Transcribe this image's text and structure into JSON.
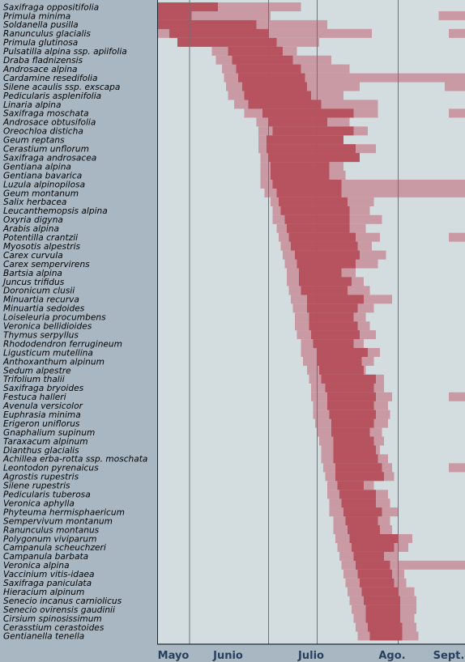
{
  "chart_data": {
    "type": "bar",
    "orientation": "horizontal-range",
    "title": "",
    "xlabel": "",
    "ylabel": "",
    "x_axis_unit": "day-of-year",
    "xlim": [
      121,
      273
    ],
    "month_labels": [
      {
        "label": "Mayo",
        "x": 129
      },
      {
        "label": "Junio",
        "x": 156
      },
      {
        "label": "Julio",
        "x": 197
      },
      {
        "label": "Ago.",
        "x": 237
      },
      {
        "label": "Sept.",
        "x": 265
      }
    ],
    "gridlines": [
      137,
      176,
      200,
      240
    ],
    "colors": {
      "plot_bg": "#d3dcdf",
      "frame_bg": "#a9b7c2",
      "peak": "#b6535f",
      "range": "#c99aa4",
      "grid": "#6b7378",
      "month_text": "#26415f"
    },
    "series": [
      {
        "name": "",
        "key": "peak"
      },
      {
        "name": "",
        "key": "range"
      }
    ],
    "species": [
      {
        "name": "Saxifraga oppositifolia",
        "peak": [
          121,
          151
        ],
        "range": [
          [
            121,
            192
          ]
        ]
      },
      {
        "name": "Primula minima",
        "peak": [
          121,
          138
        ],
        "range": [
          [
            121,
            177
          ],
          [
            260,
            273
          ]
        ]
      },
      {
        "name": "Soldanella pusilla",
        "peak": [
          121,
          170
        ],
        "range": [
          [
            121,
            205
          ]
        ]
      },
      {
        "name": "Ranunculus glacialis",
        "peak": [
          127,
          176
        ],
        "range": [
          [
            121,
            227
          ],
          [
            265,
            273
          ]
        ]
      },
      {
        "name": "Primula glutinosa",
        "peak": [
          131,
          180
        ],
        "range": [
          [
            131,
            201
          ]
        ]
      },
      {
        "name": "Pulsatilla alpina ssp. apiifolia",
        "peak": [
          156,
          183
        ],
        "range": [
          [
            148,
            190
          ]
        ]
      },
      {
        "name": "Draba fladnizensis",
        "peak": [
          158,
          188
        ],
        "range": [
          [
            150,
            207
          ]
        ]
      },
      {
        "name": "Androsace alpina",
        "peak": [
          160,
          192
        ],
        "range": [
          [
            153,
            216
          ]
        ]
      },
      {
        "name": "Cardamine resedifolia",
        "peak": [
          161,
          194
        ],
        "range": [
          [
            154,
            273
          ]
        ]
      },
      {
        "name": "Silene acaulis ssp. exscapa",
        "peak": [
          163,
          195
        ],
        "range": [
          [
            155,
            221
          ],
          [
            263,
            273
          ]
        ]
      },
      {
        "name": "Pedicularis asplenifolia",
        "peak": [
          164,
          197
        ],
        "range": [
          [
            156,
            213
          ]
        ]
      },
      {
        "name": "Linaria alpina",
        "peak": [
          166,
          202
        ],
        "range": [
          [
            159,
            230
          ]
        ]
      },
      {
        "name": "Saxifraga moschata",
        "peak": [
          173,
          218
        ],
        "range": [
          [
            164,
            230
          ],
          [
            265,
            273
          ]
        ]
      },
      {
        "name": "Androsace obtusifolia",
        "peak": [
          176,
          205
        ],
        "range": [
          [
            170,
            216
          ]
        ]
      },
      {
        "name": "Oreochloa disticha",
        "peak": [
          178,
          218
        ],
        "range": [
          [
            171,
            225
          ]
        ]
      },
      {
        "name": "Geum reptans",
        "peak": [
          175,
          213
        ],
        "range": [
          [
            171,
            198
          ]
        ]
      },
      {
        "name": "Cerastium unflorum",
        "peak": [
          175,
          219
        ],
        "range": [
          [
            171,
            229
          ]
        ]
      },
      {
        "name": "Saxifraga androsacea",
        "peak": [
          176,
          221
        ],
        "range": [
          [
            172,
            221
          ]
        ]
      },
      {
        "name": "Gentiana alpina",
        "peak": [
          177,
          206
        ],
        "range": [
          [
            172,
            213
          ]
        ]
      },
      {
        "name": "Gentiana bavarica",
        "peak": [
          177,
          206
        ],
        "range": [
          [
            172,
            214
          ]
        ]
      },
      {
        "name": "Luzula alpinopilosa",
        "peak": [
          178,
          212
        ],
        "range": [
          [
            172,
            273
          ]
        ]
      },
      {
        "name": "Geum montanum",
        "peak": [
          180,
          212
        ],
        "range": [
          [
            174,
            273
          ]
        ]
      },
      {
        "name": "Salix herbacea",
        "peak": [
          181,
          215
        ],
        "range": [
          [
            177,
            228
          ]
        ]
      },
      {
        "name": "Leucanthemopsis alpina",
        "peak": [
          182,
          216
        ],
        "range": [
          [
            178,
            226
          ]
        ]
      },
      {
        "name": "Oxyria digyna",
        "peak": [
          184,
          216
        ],
        "range": [
          [
            178,
            232
          ]
        ]
      },
      {
        "name": "Arabis alpina",
        "peak": [
          185,
          216
        ],
        "range": [
          [
            180,
            224
          ]
        ]
      },
      {
        "name": "Potentilla crantzii",
        "peak": [
          186,
          219
        ],
        "range": [
          [
            181,
            231
          ],
          [
            265,
            273
          ]
        ]
      },
      {
        "name": "Myosotis alpestris",
        "peak": [
          187,
          220
        ],
        "range": [
          [
            182,
            227
          ]
        ]
      },
      {
        "name": "Carex curvula",
        "peak": [
          189,
          221
        ],
        "range": [
          [
            183,
            234
          ]
        ]
      },
      {
        "name": "Carex sempervirens",
        "peak": [
          190,
          219
        ],
        "range": [
          [
            184,
            230
          ]
        ]
      },
      {
        "name": "Bartsia alpina",
        "peak": [
          191,
          212
        ],
        "range": [
          [
            185,
            219
          ]
        ]
      },
      {
        "name": "Juncus trifidus",
        "peak": [
          191,
          217
        ],
        "range": [
          [
            185,
            223
          ]
        ]
      },
      {
        "name": "Doronicum clusii",
        "peak": [
          192,
          215
        ],
        "range": [
          [
            186,
            226
          ]
        ]
      },
      {
        "name": "Minuartia recurva",
        "peak": [
          195,
          223
        ],
        "range": [
          [
            187,
            237
          ]
        ]
      },
      {
        "name": "Minuartia sedoides",
        "peak": [
          195,
          220
        ],
        "range": [
          [
            188,
            228
          ]
        ]
      },
      {
        "name": "Loiseleuria procumbens",
        "peak": [
          196,
          218
        ],
        "range": [
          [
            189,
            224
          ]
        ]
      },
      {
        "name": "Veronica bellidioides",
        "peak": [
          196,
          220
        ],
        "range": [
          [
            189,
            226
          ]
        ]
      },
      {
        "name": "Thymus serpyllus",
        "peak": [
          197,
          221
        ],
        "range": [
          [
            190,
            229
          ]
        ]
      },
      {
        "name": "Rhododendron ferrugineum",
        "peak": [
          198,
          218
        ],
        "range": [
          [
            192,
            223
          ]
        ]
      },
      {
        "name": "Ligusticum mutellina",
        "peak": [
          200,
          225
        ],
        "range": [
          [
            192,
            231
          ]
        ]
      },
      {
        "name": "Anthoxanthum alpinum",
        "peak": [
          200,
          222
        ],
        "range": [
          [
            193,
            228
          ]
        ]
      },
      {
        "name": "Sedum alpestre",
        "peak": [
          201,
          223
        ],
        "range": [
          [
            195,
            224
          ]
        ]
      },
      {
        "name": "Trifolium thalii",
        "peak": [
          202,
          229
        ],
        "range": [
          [
            196,
            233
          ]
        ]
      },
      {
        "name": "Saxifraga bryoides",
        "peak": [
          204,
          228
        ],
        "range": [
          [
            197,
            233
          ]
        ]
      },
      {
        "name": "Festuca halleri",
        "peak": [
          205,
          229
        ],
        "range": [
          [
            197,
            237
          ],
          [
            265,
            273
          ]
        ]
      },
      {
        "name": "Avenula versicolor",
        "peak": [
          205,
          228
        ],
        "range": [
          [
            198,
            235
          ]
        ]
      },
      {
        "name": "Euphrasia minima",
        "peak": [
          206,
          229
        ],
        "range": [
          [
            198,
            236
          ]
        ]
      },
      {
        "name": "Erigeron uniflorus",
        "peak": [
          207,
          228
        ],
        "range": [
          [
            199,
            235
          ]
        ]
      },
      {
        "name": "Gnaphalium supinum",
        "peak": [
          207,
          226
        ],
        "range": [
          [
            200,
            232
          ]
        ]
      },
      {
        "name": "Taraxacum alpinum",
        "peak": [
          208,
          228
        ],
        "range": [
          [
            201,
            233
          ]
        ]
      },
      {
        "name": "Dianthus glacialis",
        "peak": [
          208,
          229
        ],
        "range": [
          [
            202,
            231
          ]
        ]
      },
      {
        "name": "Achillea erba-rotta ssp. moschata",
        "peak": [
          208,
          230
        ],
        "range": [
          [
            202,
            235
          ]
        ]
      },
      {
        "name": "Leontodon pyrenaicus",
        "peak": [
          209,
          232
        ],
        "range": [
          [
            203,
            237
          ],
          [
            265,
            273
          ]
        ]
      },
      {
        "name": "Agrostis rupestris",
        "peak": [
          209,
          233
        ],
        "range": [
          [
            204,
            238
          ]
        ]
      },
      {
        "name": "Silene rupestris",
        "peak": [
          210,
          223
        ],
        "range": [
          [
            205,
            228
          ]
        ]
      },
      {
        "name": "Pedicularis tuberosa",
        "peak": [
          211,
          229
        ],
        "range": [
          [
            205,
            235
          ]
        ]
      },
      {
        "name": "Veronica aphylla",
        "peak": [
          212,
          229
        ],
        "range": [
          [
            206,
            236
          ]
        ]
      },
      {
        "name": "Phyteuma hermisphaericum",
        "peak": [
          213,
          232
        ],
        "range": [
          [
            206,
            240
          ]
        ]
      },
      {
        "name": "Sempervivum montanum",
        "peak": [
          214,
          230
        ],
        "range": [
          [
            208,
            236
          ]
        ]
      },
      {
        "name": "Ranunculus montanus",
        "peak": [
          215,
          231
        ],
        "range": [
          [
            208,
            237
          ]
        ]
      },
      {
        "name": "Polygonum viviparum",
        "peak": [
          216,
          240
        ],
        "range": [
          [
            209,
            247
          ]
        ]
      },
      {
        "name": "Campanula scheuchzeri",
        "peak": [
          217,
          238
        ],
        "range": [
          [
            210,
            245
          ]
        ]
      },
      {
        "name": "Campanula barbata",
        "peak": [
          218,
          233
        ],
        "range": [
          [
            211,
            240
          ]
        ]
      },
      {
        "name": "Veronica alpina",
        "peak": [
          219,
          236
        ],
        "range": [
          [
            212,
            273
          ]
        ]
      },
      {
        "name": "Vaccinium vitis-idaea",
        "peak": [
          220,
          237
        ],
        "range": [
          [
            213,
            243
          ]
        ]
      },
      {
        "name": "Saxifraga paniculata",
        "peak": [
          221,
          238
        ],
        "range": [
          [
            214,
            244
          ]
        ]
      },
      {
        "name": "Hieracium alpinum",
        "peak": [
          222,
          240
        ],
        "range": [
          [
            215,
            248
          ]
        ]
      },
      {
        "name": "Senecio incanus carniolicus",
        "peak": [
          223,
          241
        ],
        "range": [
          [
            216,
            249
          ]
        ]
      },
      {
        "name": "Senecio ovirensis gaudinii",
        "peak": [
          224,
          241
        ],
        "range": [
          [
            217,
            249
          ]
        ]
      },
      {
        "name": "Cirsium spinosissimum",
        "peak": [
          224,
          241
        ],
        "range": [
          [
            218,
            248
          ]
        ]
      },
      {
        "name": "Cerasstium cerastoides",
        "peak": [
          225,
          242
        ],
        "range": [
          [
            219,
            249
          ]
        ]
      },
      {
        "name": "Gentianella tenella",
        "peak": [
          226,
          242
        ],
        "range": [
          [
            220,
            250
          ]
        ]
      }
    ]
  }
}
